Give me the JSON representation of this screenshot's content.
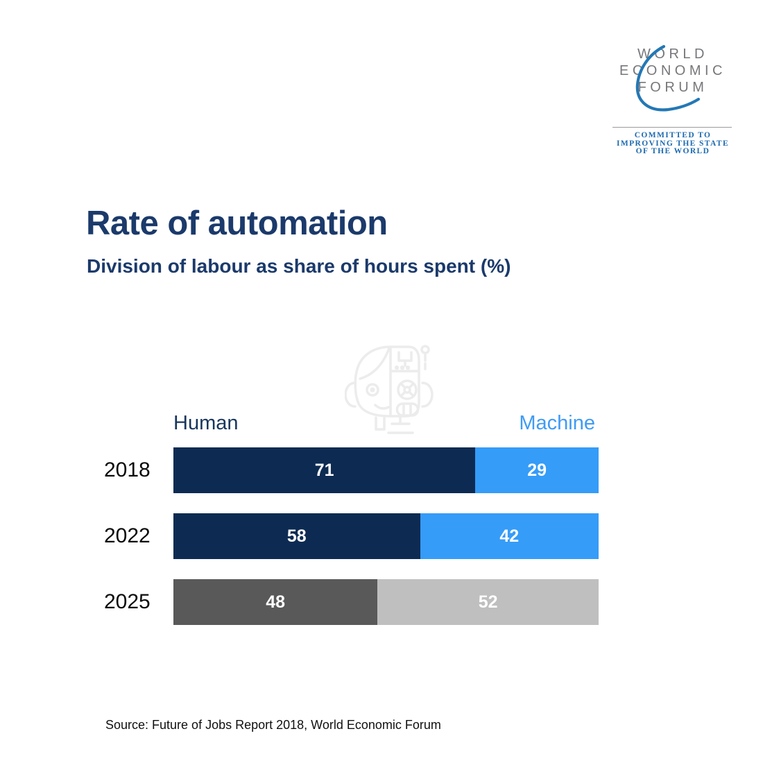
{
  "logo": {
    "name_lines": [
      "WORLD",
      "ECONOMIC",
      "FORUM"
    ],
    "tagline_lines": [
      "COMMITTED TO",
      "IMPROVING THE STATE",
      "OF THE WORLD"
    ],
    "name_color": "#76777a",
    "swoosh_color": "#2478b5",
    "tagline_color": "#1c6ab0"
  },
  "header": {
    "title": "Rate of automation",
    "subtitle": "Division of labour as share of hours spent (%)",
    "title_color": "#1b3a6b"
  },
  "legend": {
    "human_label": "Human",
    "machine_label": "Machine",
    "human_color": "#17365d",
    "machine_color": "#3f9bf5"
  },
  "icons": {
    "watermark": "human-robot-head-icon"
  },
  "source": "Source: Future of Jobs Report 2018, World Economic Forum",
  "chart_data": {
    "type": "bar",
    "orientation": "horizontal_stacked",
    "unit": "%",
    "title": "Rate of automation",
    "subtitle": "Division of labour as share of hours spent (%)",
    "categories": [
      "2018",
      "2022",
      "2025"
    ],
    "series": [
      {
        "name": "Human",
        "values": [
          71,
          58,
          48
        ]
      },
      {
        "name": "Machine",
        "values": [
          29,
          42,
          52
        ]
      }
    ],
    "row_colors": [
      [
        "#0d2b52",
        "#359cf8"
      ],
      [
        "#0d2b52",
        "#359cf8"
      ],
      [
        "#595959",
        "#bfbfbf"
      ]
    ],
    "value_label_color": "#ffffff",
    "legend_position": "above",
    "grid": false,
    "xlim": [
      0,
      100
    ]
  }
}
